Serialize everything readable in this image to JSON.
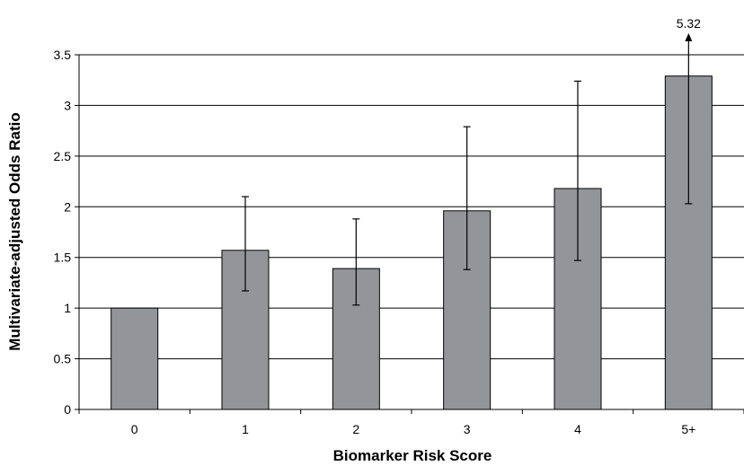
{
  "chart_data": {
    "type": "bar",
    "categories": [
      "0",
      "1",
      "2",
      "3",
      "4",
      "5+"
    ],
    "values": [
      1.0,
      1.57,
      1.39,
      1.96,
      2.18,
      3.29
    ],
    "error_low": [
      null,
      1.17,
      1.03,
      1.38,
      1.47,
      2.03
    ],
    "error_high": [
      null,
      2.1,
      1.88,
      2.79,
      3.24,
      5.32
    ],
    "error_high_truncated": [
      false,
      false,
      false,
      false,
      false,
      true
    ],
    "annotation": {
      "category": "5+",
      "text": "5.32"
    },
    "xlabel": "Biomarker Risk Score",
    "ylabel": "Multivariate-adjusted Odds Ratio",
    "ylim": [
      0,
      3.5
    ],
    "yticks": [
      0,
      0.5,
      1,
      1.5,
      2,
      2.5,
      3,
      3.5
    ],
    "ytick_labels": [
      "0",
      "0.5",
      "1",
      "1.5",
      "2",
      "2.5",
      "3",
      "3.5"
    ],
    "grid": true,
    "bar_color": "#939598"
  }
}
